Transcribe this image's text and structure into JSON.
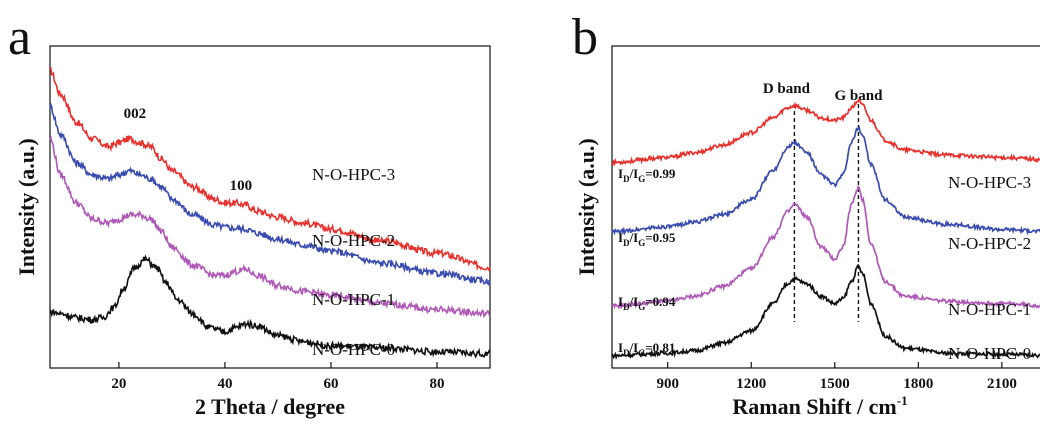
{
  "chart_data": [
    {
      "type": "line",
      "panel": "a",
      "xlabel": "2 Theta / degree",
      "ylabel": "Intensity (a.u.)",
      "xlim": [
        7,
        90
      ],
      "xticks": [
        20,
        40,
        60,
        80
      ],
      "yticks_shown": false,
      "peak_annotations": [
        {
          "text": "002",
          "x": 23
        },
        {
          "text": "100",
          "x": 43
        }
      ],
      "series": [
        {
          "name": "N-O-HPC-3",
          "color": "#e8302c",
          "x": [
            7,
            9,
            12,
            15,
            18,
            20,
            22,
            24,
            26,
            28,
            30,
            34,
            38,
            40,
            42,
            44,
            46,
            50,
            55,
            60,
            70,
            80,
            90
          ],
          "y": [
            64,
            58,
            51,
            47,
            45,
            46,
            47,
            46,
            45,
            42,
            39,
            35,
            32,
            31,
            31,
            30.5,
            29,
            27.5,
            26,
            24.5,
            21.5,
            18.5,
            15
          ]
        },
        {
          "name": "N-O-HPC-2",
          "color": "#3a4cb0",
          "x": [
            7,
            9,
            12,
            15,
            18,
            20,
            22,
            24,
            26,
            28,
            30,
            34,
            38,
            40,
            42,
            44,
            46,
            50,
            55,
            60,
            70,
            80,
            90
          ],
          "y": [
            55,
            48,
            41,
            38,
            37,
            38,
            39,
            38,
            37,
            35,
            32,
            28,
            25.5,
            25,
            24.7,
            24.5,
            23.5,
            22,
            20.5,
            19,
            16,
            13.5,
            11.5
          ]
        },
        {
          "name": "N-O-HPC-1",
          "color": "#b05ab8",
          "x": [
            7,
            9,
            12,
            15,
            18,
            20,
            22,
            24,
            26,
            28,
            30,
            34,
            38,
            40,
            42,
            44,
            46,
            50,
            55,
            60,
            70,
            80,
            90
          ],
          "y": [
            47,
            38,
            31,
            27,
            26,
            27,
            28,
            28,
            27,
            24,
            20,
            15.5,
            13,
            13,
            14,
            14.5,
            13,
            10.5,
            9,
            8,
            6,
            4.5,
            3.5
          ]
        },
        {
          "name": "N-O-HPC-0",
          "color": "#111111",
          "x": [
            7,
            9,
            12,
            15,
            17,
            19,
            21,
            23,
            25,
            27,
            29,
            31,
            34,
            37,
            40,
            42,
            44,
            46,
            50,
            55,
            60,
            70,
            80,
            90
          ],
          "y": [
            4,
            3.5,
            2.5,
            2,
            2.5,
            5,
            10,
            15,
            17,
            15,
            11,
            7,
            3.5,
            0,
            -1,
            0,
            1,
            0.5,
            -2,
            -3.5,
            -4.5,
            -5,
            -6,
            -6.5
          ]
        }
      ]
    },
    {
      "type": "line",
      "panel": "b",
      "xlabel": "Raman Shift / cm",
      "xlabel_superscript": "-1",
      "ylabel": "Intensity (a.u.)",
      "xlim": [
        700,
        2280
      ],
      "xticks": [
        900,
        1200,
        1500,
        1800,
        2100
      ],
      "yticks_shown": false,
      "vlines": [
        {
          "x": 1355,
          "label": "D band"
        },
        {
          "x": 1585,
          "label": "G band"
        }
      ],
      "series": [
        {
          "name": "N-O-HPC-3",
          "label_visible": "N-O-HPC-3",
          "color": "#e8302c",
          "ratio": "0.99",
          "x": [
            700,
            900,
            1000,
            1100,
            1200,
            1280,
            1330,
            1355,
            1400,
            1450,
            1500,
            1530,
            1560,
            1585,
            1600,
            1630,
            1680,
            1750,
            1900,
            2100,
            2280
          ],
          "y": [
            78,
            80,
            82,
            85,
            90,
            96,
            100,
            101,
            99,
            96,
            95,
            96,
            100,
            103,
            101,
            95,
            87,
            83,
            81,
            80,
            79
          ]
        },
        {
          "name": "N-O-HPC-2",
          "label_visible": "N-O-HPC-2",
          "color": "#3a4cb0",
          "ratio": "0.95",
          "x": [
            700,
            900,
            1000,
            1100,
            1200,
            1280,
            1330,
            1355,
            1400,
            1450,
            1500,
            1530,
            1560,
            1585,
            1600,
            1630,
            1680,
            1750,
            1900,
            2100,
            2280
          ],
          "y": [
            50,
            52,
            54,
            57,
            63,
            75,
            84,
            86,
            82,
            73,
            69,
            73,
            86,
            92,
            89,
            77,
            63,
            56,
            53,
            51,
            50
          ]
        },
        {
          "name": "N-O-HPC-1",
          "label_visible": "N-O-HPC-1",
          "color": "#b05ab8",
          "ratio": "0.94",
          "x": [
            700,
            900,
            1000,
            1100,
            1200,
            1280,
            1330,
            1355,
            1400,
            1450,
            1500,
            1530,
            1560,
            1585,
            1600,
            1630,
            1680,
            1750,
            1900,
            2100,
            2280
          ],
          "y": [
            20,
            22,
            24,
            28,
            35,
            48,
            58,
            61,
            56,
            44,
            39,
            44,
            61,
            68,
            63,
            45,
            30,
            24,
            22,
            21,
            20
          ]
        },
        {
          "name": "N-O-HPC-0",
          "label_visible": "N-O-HPC-0",
          "color": "#111111",
          "ratio": "0.81",
          "x": [
            700,
            900,
            1000,
            1100,
            1200,
            1280,
            1330,
            1355,
            1400,
            1450,
            1500,
            1530,
            1560,
            1585,
            1600,
            1630,
            1680,
            1750,
            1900,
            2100,
            2280
          ],
          "y": [
            0,
            1,
            2,
            5,
            10,
            21,
            29,
            31,
            29,
            24,
            21,
            23,
            30,
            36,
            33,
            21,
            8,
            3,
            1,
            0.5,
            0
          ]
        }
      ]
    }
  ],
  "labels": {
    "panel_a": "a",
    "panel_b": "b",
    "ratio_prefix_main": "I",
    "ratio_sub_d": "D",
    "ratio_sub_g": "G",
    "ratio_slash": "/"
  }
}
